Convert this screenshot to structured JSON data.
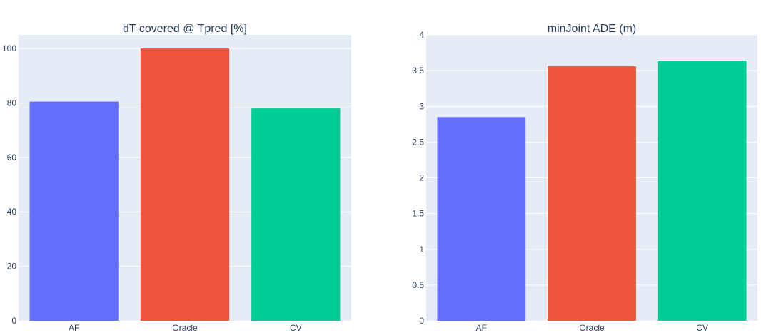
{
  "chart_data": [
    {
      "type": "bar",
      "title": "dT covered @ Tpred [%]",
      "categories": [
        "AF",
        "Oracle",
        "CV"
      ],
      "values": [
        80.5,
        100,
        78
      ],
      "ylim": [
        0,
        105
      ],
      "yticks": [
        0,
        20,
        40,
        60,
        80,
        100
      ],
      "ytick_labels": [
        "0",
        "20",
        "40",
        "60",
        "80",
        "100"
      ],
      "xlabel": "",
      "ylabel": "",
      "grid": true,
      "colors": [
        "#636efa",
        "#ef553b",
        "#00cc96"
      ]
    },
    {
      "type": "bar",
      "title": "minJoint ADE (m)",
      "categories": [
        "AF",
        "Oracle",
        "CV"
      ],
      "values": [
        2.85,
        3.56,
        3.64
      ],
      "ylim": [
        0,
        4
      ],
      "yticks": [
        0,
        0.5,
        1,
        1.5,
        2,
        2.5,
        3,
        3.5,
        4
      ],
      "ytick_labels": [
        "0",
        "0.5",
        "1",
        "1.5",
        "2",
        "2.5",
        "3",
        "3.5",
        "4"
      ],
      "xlabel": "",
      "ylabel": "",
      "grid": true,
      "colors": [
        "#636efa",
        "#ef553b",
        "#00cc96"
      ]
    }
  ]
}
